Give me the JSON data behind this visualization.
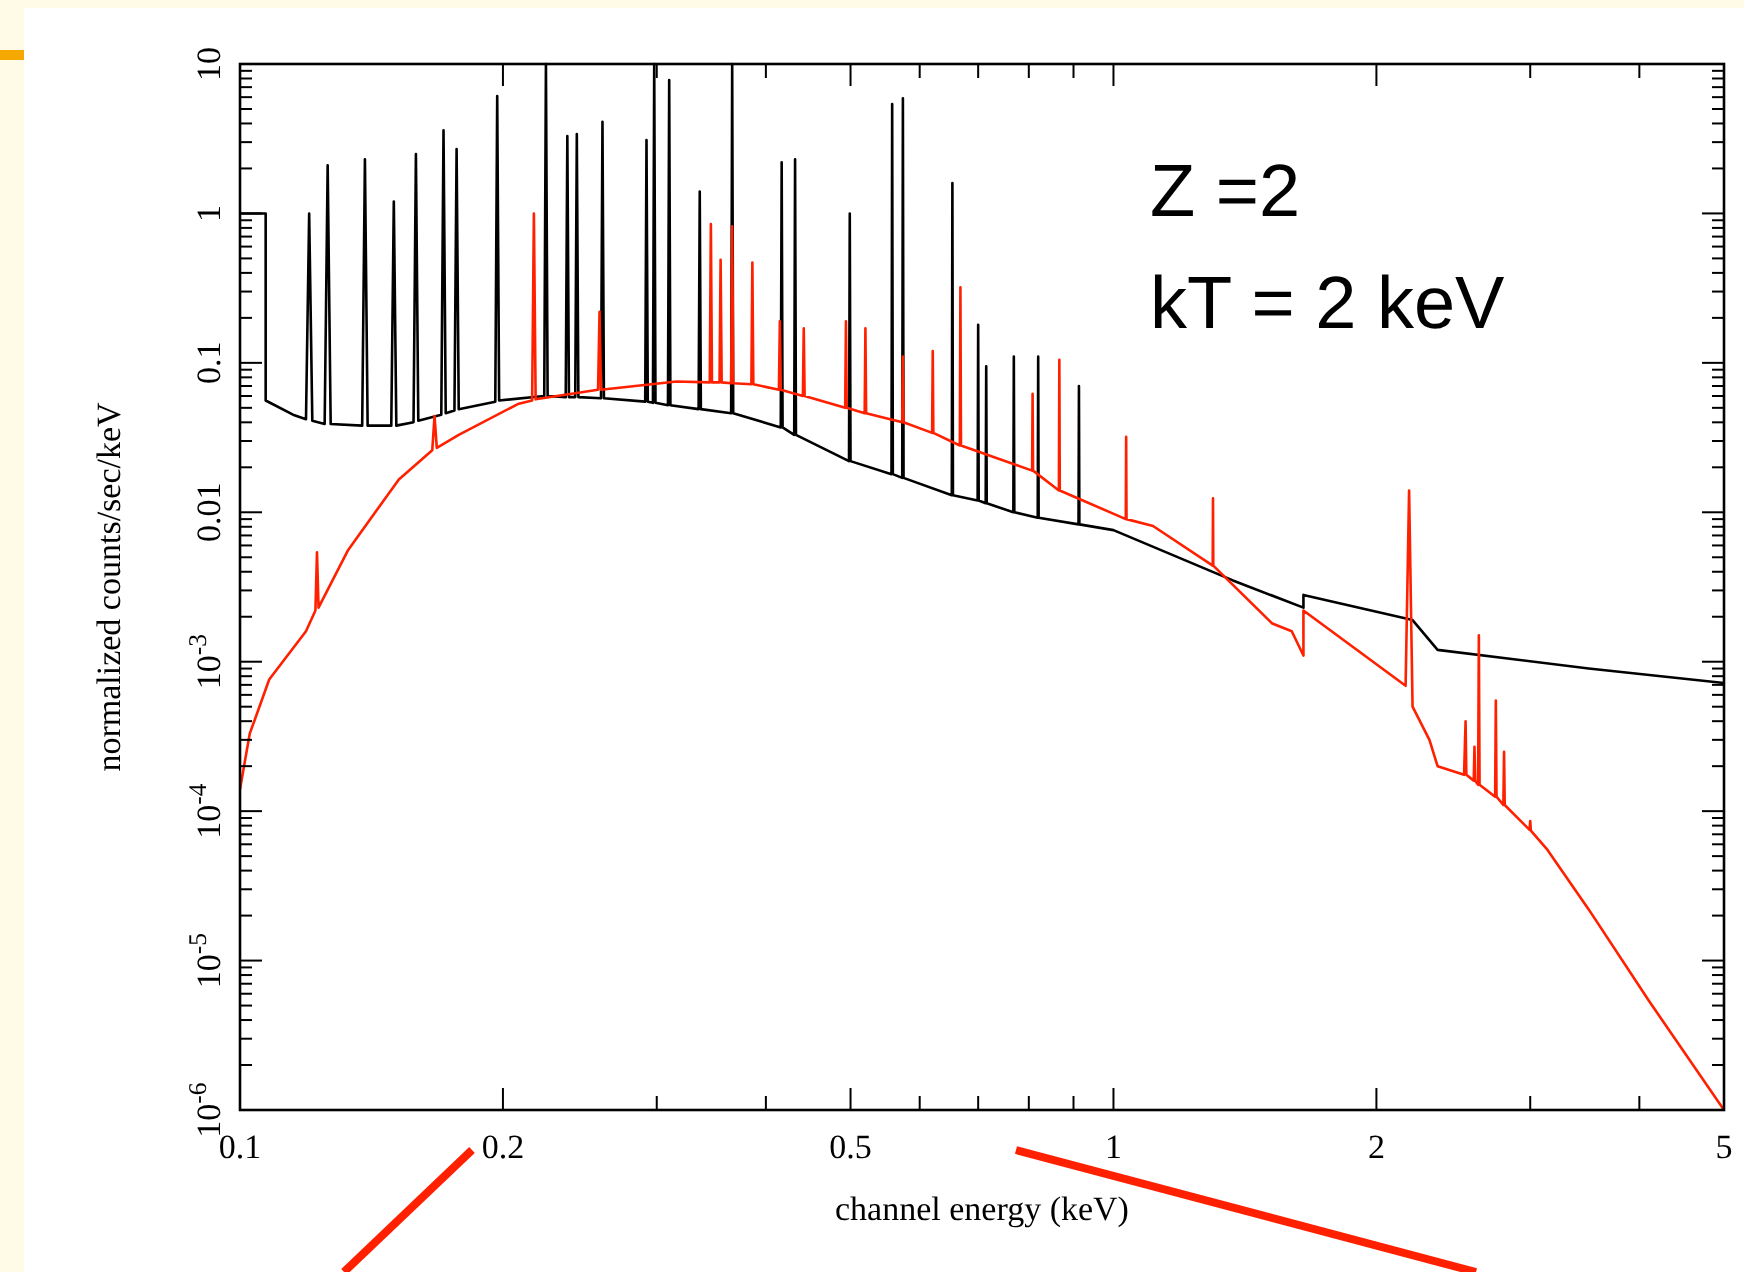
{
  "chart_data": {
    "type": "line",
    "xlabel": "channel energy (keV)",
    "ylabel": "normalized counts/sec/keV",
    "log": "xy",
    "grid": false,
    "line_style": "solid",
    "xlim": [
      0.1,
      5
    ],
    "ylim": [
      1e-06,
      10
    ],
    "xticks": [
      0.1,
      0.2,
      {
        "value": 0.3,
        "label": null
      },
      {
        "value": 0.4,
        "label": null
      },
      0.5,
      {
        "value": 0.6,
        "label": null
      },
      {
        "value": 0.7,
        "label": null
      },
      {
        "value": 0.8,
        "label": null
      },
      {
        "value": 0.9,
        "label": null
      },
      1,
      2,
      {
        "value": 3,
        "label": null
      },
      {
        "value": 4,
        "label": null
      },
      5
    ],
    "yticks": [
      {
        "value": 1e-06,
        "label": "10$^{-6}$"
      },
      {
        "value": 2e-06,
        "label": null
      },
      {
        "value": 3e-06,
        "label": null
      },
      {
        "value": 4e-06,
        "label": null
      },
      {
        "value": 5e-06,
        "label": null
      },
      {
        "value": 6e-06,
        "label": null
      },
      {
        "value": 7e-06,
        "label": null
      },
      {
        "value": 8e-06,
        "label": null
      },
      {
        "value": 9e-06,
        "label": null
      },
      {
        "value": 1e-05,
        "label": "10$^{-5}$"
      },
      {
        "value": 2e-05,
        "label": null
      },
      {
        "value": 3e-05,
        "label": null
      },
      {
        "value": 4e-05,
        "label": null
      },
      {
        "value": 5e-05,
        "label": null
      },
      {
        "value": 6e-05,
        "label": null
      },
      {
        "value": 7e-05,
        "label": null
      },
      {
        "value": 8e-05,
        "label": null
      },
      {
        "value": 9e-05,
        "label": null
      },
      {
        "value": 0.0001,
        "label": "10$^{-4}$"
      },
      {
        "value": 0.0002,
        "label": null
      },
      {
        "value": 0.0003,
        "label": null
      },
      {
        "value": 0.0004,
        "label": null
      },
      {
        "value": 0.0005,
        "label": null
      },
      {
        "value": 0.0006,
        "label": null
      },
      {
        "value": 0.0007,
        "label": null
      },
      {
        "value": 0.0008,
        "label": null
      },
      {
        "value": 0.0009,
        "label": null
      },
      {
        "value": 0.001,
        "label": "10$^{-3}$"
      },
      {
        "value": 0.002,
        "label": null
      },
      {
        "value": 0.003,
        "label": null
      },
      {
        "value": 0.004,
        "label": null
      },
      {
        "value": 0.005,
        "label": null
      },
      {
        "value": 0.006,
        "label": null
      },
      {
        "value": 0.007,
        "label": null
      },
      {
        "value": 0.008,
        "label": null
      },
      {
        "value": 0.009,
        "label": null
      },
      0.01,
      {
        "value": 0.02,
        "label": null
      },
      {
        "value": 0.03,
        "label": null
      },
      {
        "value": 0.04,
        "label": null
      },
      {
        "value": 0.05,
        "label": null
      },
      {
        "value": 0.06,
        "label": null
      },
      {
        "value": 0.07,
        "label": null
      },
      {
        "value": 0.08,
        "label": null
      },
      {
        "value": 0.09,
        "label": null
      },
      0.1,
      {
        "value": 0.2,
        "label": null
      },
      {
        "value": 0.3,
        "label": null
      },
      {
        "value": 0.4,
        "label": null
      },
      {
        "value": 0.5,
        "label": null
      },
      {
        "value": 0.6,
        "label": null
      },
      {
        "value": 0.7,
        "label": null
      },
      {
        "value": 0.8,
        "label": null
      },
      {
        "value": 0.9,
        "label": null
      },
      1,
      {
        "value": 2,
        "label": null
      },
      {
        "value": 3,
        "label": null
      },
      {
        "value": 4,
        "label": null
      },
      {
        "value": 5,
        "label": null
      },
      {
        "value": 6,
        "label": null
      },
      {
        "value": 7,
        "label": null
      },
      {
        "value": 8,
        "label": null
      },
      {
        "value": 9,
        "label": null
      },
      10
    ],
    "annotations": [
      "Z =2",
      "kT = 2 keV"
    ],
    "series": [
      {
        "color": "#000000",
        "x": [
          0.1,
          0.107,
          0.107,
          0.115,
          0.119,
          0.12,
          0.121,
          0.125,
          0.126,
          0.127,
          0.138,
          0.139,
          0.14,
          0.149,
          0.15,
          0.151,
          0.158,
          0.159,
          0.16,
          0.17,
          0.171,
          0.172,
          0.176,
          0.177,
          0.178,
          0.196,
          0.197,
          0.198,
          0.223,
          0.224,
          0.225,
          0.236,
          0.237,
          0.238,
          0.242,
          0.243,
          0.244,
          0.259,
          0.26,
          0.261,
          0.291,
          0.292,
          0.293,
          0.297,
          0.298,
          0.299,
          0.309,
          0.31,
          0.311,
          0.335,
          0.336,
          0.337,
          0.365,
          0.366,
          0.367,
          0.416,
          0.417,
          0.418,
          0.431,
          0.432,
          0.433,
          0.498,
          0.499,
          0.5,
          0.557,
          0.558,
          0.559,
          0.573,
          0.574,
          0.575,
          0.653,
          0.654,
          0.655,
          0.699,
          0.7,
          0.701,
          0.714,
          0.715,
          0.716,
          0.768,
          0.769,
          0.77,
          0.819,
          0.82,
          0.821,
          0.912,
          0.913,
          0.914,
          1.0,
          1.37,
          1.65,
          1.65,
          2.2,
          2.35,
          3.5,
          5
        ],
        "values": [
          1,
          1,
          0.056,
          0.045,
          0.042,
          1.0,
          0.041,
          0.039,
          2.1,
          0.039,
          0.038,
          2.3,
          0.038,
          0.038,
          1.2,
          0.038,
          0.04,
          2.5,
          0.041,
          0.045,
          3.6,
          0.046,
          0.048,
          2.7,
          0.049,
          0.055,
          6.1,
          0.056,
          0.06,
          10,
          0.06,
          0.059,
          3.3,
          0.059,
          0.059,
          3.4,
          0.059,
          0.058,
          4.1,
          0.058,
          0.055,
          3.1,
          0.055,
          0.054,
          10,
          0.054,
          0.052,
          7.8,
          0.052,
          0.049,
          1.4,
          0.049,
          0.046,
          10,
          0.046,
          0.037,
          2.2,
          0.037,
          0.033,
          2.3,
          0.033,
          0.022,
          1.0,
          0.022,
          0.018,
          5.4,
          0.018,
          0.017,
          5.9,
          0.017,
          0.013,
          1.6,
          0.013,
          0.012,
          0.18,
          0.012,
          0.0115,
          0.095,
          0.0115,
          0.01,
          0.11,
          0.01,
          0.0092,
          0.11,
          0.0092,
          0.0083,
          0.07,
          0.0083,
          0.0076,
          0.0035,
          0.0023,
          0.0028,
          0.0019,
          0.0012,
          0.0009,
          0.00072
        ]
      },
      {
        "color": "#ff2000",
        "x": [
          0.1,
          0.1026,
          0.108,
          0.119,
          0.122,
          0.1225,
          0.123,
          0.133,
          0.152,
          0.166,
          0.167,
          0.168,
          0.178,
          0.208,
          0.216,
          0.217,
          0.218,
          0.257,
          0.258,
          0.259,
          0.316,
          0.345,
          0.346,
          0.347,
          0.354,
          0.355,
          0.356,
          0.365,
          0.366,
          0.367,
          0.385,
          0.386,
          0.387,
          0.414,
          0.415,
          0.416,
          0.441,
          0.442,
          0.443,
          0.493,
          0.494,
          0.495,
          0.519,
          0.52,
          0.521,
          0.573,
          0.574,
          0.575,
          0.62,
          0.621,
          0.622,
          0.667,
          0.668,
          0.669,
          0.807,
          0.808,
          0.809,
          0.866,
          0.867,
          0.868,
          1.033,
          1.034,
          1.035,
          1.11,
          1.299,
          1.3,
          1.301,
          1.52,
          1.6,
          1.65,
          1.65,
          2.16,
          2.18,
          2.2,
          2.3,
          2.35,
          2.52,
          2.53,
          2.535,
          2.585,
          2.59,
          2.595,
          2.615,
          2.62,
          2.625,
          2.735,
          2.74,
          2.745,
          2.795,
          2.8,
          2.805,
          2.995,
          3.0,
          3.005,
          3.14,
          3.5,
          4.1,
          5
        ],
        "values": [
          0.00014,
          0.00033,
          0.00076,
          0.0016,
          0.0022,
          0.0054,
          0.0023,
          0.0056,
          0.0166,
          0.026,
          0.044,
          0.027,
          0.033,
          0.053,
          0.056,
          1.0,
          0.057,
          0.066,
          0.22,
          0.066,
          0.075,
          0.074,
          0.85,
          0.074,
          0.074,
          0.49,
          0.074,
          0.073,
          0.82,
          0.073,
          0.072,
          0.47,
          0.072,
          0.066,
          0.19,
          0.066,
          0.06,
          0.17,
          0.06,
          0.05,
          0.19,
          0.05,
          0.046,
          0.17,
          0.046,
          0.04,
          0.11,
          0.04,
          0.034,
          0.12,
          0.034,
          0.028,
          0.32,
          0.028,
          0.019,
          0.062,
          0.019,
          0.014,
          0.105,
          0.014,
          0.009,
          0.032,
          0.009,
          0.0081,
          0.0044,
          0.0124,
          0.0044,
          0.0018,
          0.0016,
          0.0011,
          0.0022,
          0.00069,
          0.014,
          0.0005,
          0.0003,
          0.0002,
          0.000175,
          0.0004,
          0.000175,
          0.00016,
          0.00027,
          0.00016,
          0.00015,
          0.0015,
          0.00015,
          0.000125,
          0.00055,
          0.000125,
          0.00011,
          0.00025,
          0.00011,
          7.5e-05,
          8.6e-05,
          7.4e-05,
          5.5e-05,
          2.2e-05,
          5.4e-06,
          1e-06
        ]
      }
    ]
  }
}
